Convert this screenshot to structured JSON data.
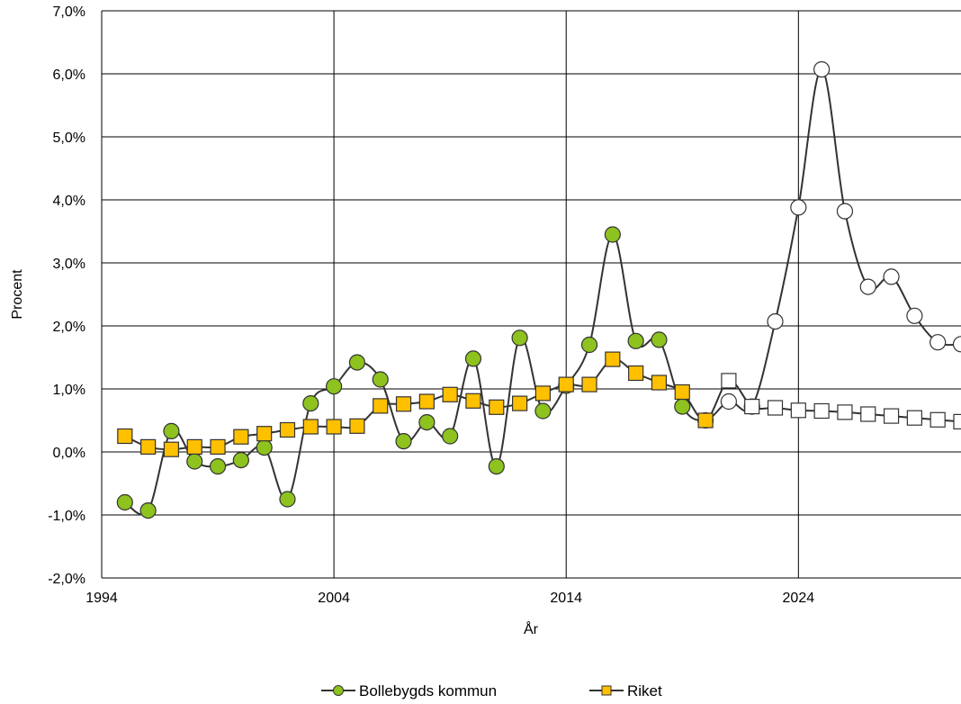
{
  "chart_data": {
    "type": "line",
    "xlabel": "År",
    "ylabel": "Procent",
    "xlim": [
      1994,
      2031
    ],
    "ylim": [
      -2.0,
      7.0
    ],
    "x_ticks": [
      1994,
      2004,
      2014,
      2024
    ],
    "x_tick_labels": [
      "1994",
      "2004",
      "2014",
      "2024"
    ],
    "y_ticks": [
      -2,
      -1,
      0,
      1,
      2,
      3,
      4,
      5,
      6,
      7
    ],
    "y_tick_labels": [
      "-2,0%",
      "-1,0%",
      "0,0%",
      "1,0%",
      "2,0%",
      "3,0%",
      "4,0%",
      "5,0%",
      "6,0%",
      "7,0%"
    ],
    "grid": true,
    "legend_position": "bottom-center",
    "forecast_start_year": 2021,
    "series": [
      {
        "name": "Bollebygds kommun",
        "marker": "circle",
        "color": "#8dc21f",
        "forecast_color": "#ffffff",
        "line_color": "#333333",
        "points": [
          [
            1995,
            -0.8
          ],
          [
            1996,
            -0.93
          ],
          [
            1997,
            0.33
          ],
          [
            1998,
            -0.15
          ],
          [
            1999,
            -0.23
          ],
          [
            2000,
            -0.13
          ],
          [
            2001,
            0.07
          ],
          [
            2002,
            -0.75
          ],
          [
            2003,
            0.77
          ],
          [
            2004,
            1.04
          ],
          [
            2005,
            1.42
          ],
          [
            2006,
            1.15
          ],
          [
            2007,
            0.17
          ],
          [
            2008,
            0.47
          ],
          [
            2009,
            0.25
          ],
          [
            2010,
            1.48
          ],
          [
            2011,
            -0.23
          ],
          [
            2012,
            1.81
          ],
          [
            2013,
            0.65
          ],
          [
            2014,
            1.05
          ],
          [
            2015,
            1.7
          ],
          [
            2016,
            3.45
          ],
          [
            2017,
            1.76
          ],
          [
            2018,
            1.78
          ],
          [
            2019,
            0.72
          ],
          [
            2020,
            0.5
          ],
          [
            2021,
            0.8
          ],
          [
            2022,
            0.72
          ],
          [
            2023,
            2.07
          ],
          [
            2024,
            3.88
          ],
          [
            2025,
            6.07
          ],
          [
            2026,
            3.82
          ],
          [
            2027,
            2.62
          ],
          [
            2028,
            2.78
          ],
          [
            2029,
            2.16
          ],
          [
            2030,
            1.74
          ],
          [
            2031,
            1.71
          ]
        ]
      },
      {
        "name": "Riket",
        "marker": "square",
        "color": "#ffc000",
        "forecast_color": "#ffffff",
        "line_color": "#333333",
        "points": [
          [
            1995,
            0.25
          ],
          [
            1996,
            0.08
          ],
          [
            1997,
            0.04
          ],
          [
            1998,
            0.08
          ],
          [
            1999,
            0.08
          ],
          [
            2000,
            0.24
          ],
          [
            2001,
            0.29
          ],
          [
            2002,
            0.35
          ],
          [
            2003,
            0.4
          ],
          [
            2004,
            0.4
          ],
          [
            2005,
            0.41
          ],
          [
            2006,
            0.73
          ],
          [
            2007,
            0.76
          ],
          [
            2008,
            0.8
          ],
          [
            2009,
            0.91
          ],
          [
            2010,
            0.81
          ],
          [
            2011,
            0.71
          ],
          [
            2012,
            0.77
          ],
          [
            2013,
            0.93
          ],
          [
            2014,
            1.07
          ],
          [
            2015,
            1.07
          ],
          [
            2016,
            1.47
          ],
          [
            2017,
            1.25
          ],
          [
            2018,
            1.1
          ],
          [
            2019,
            0.95
          ],
          [
            2020,
            0.5
          ],
          [
            2021,
            1.13
          ],
          [
            2022,
            0.72
          ],
          [
            2023,
            0.7
          ],
          [
            2024,
            0.66
          ],
          [
            2025,
            0.65
          ],
          [
            2026,
            0.63
          ],
          [
            2027,
            0.6
          ],
          [
            2028,
            0.57
          ],
          [
            2029,
            0.54
          ],
          [
            2030,
            0.51
          ],
          [
            2031,
            0.48
          ]
        ]
      }
    ]
  }
}
